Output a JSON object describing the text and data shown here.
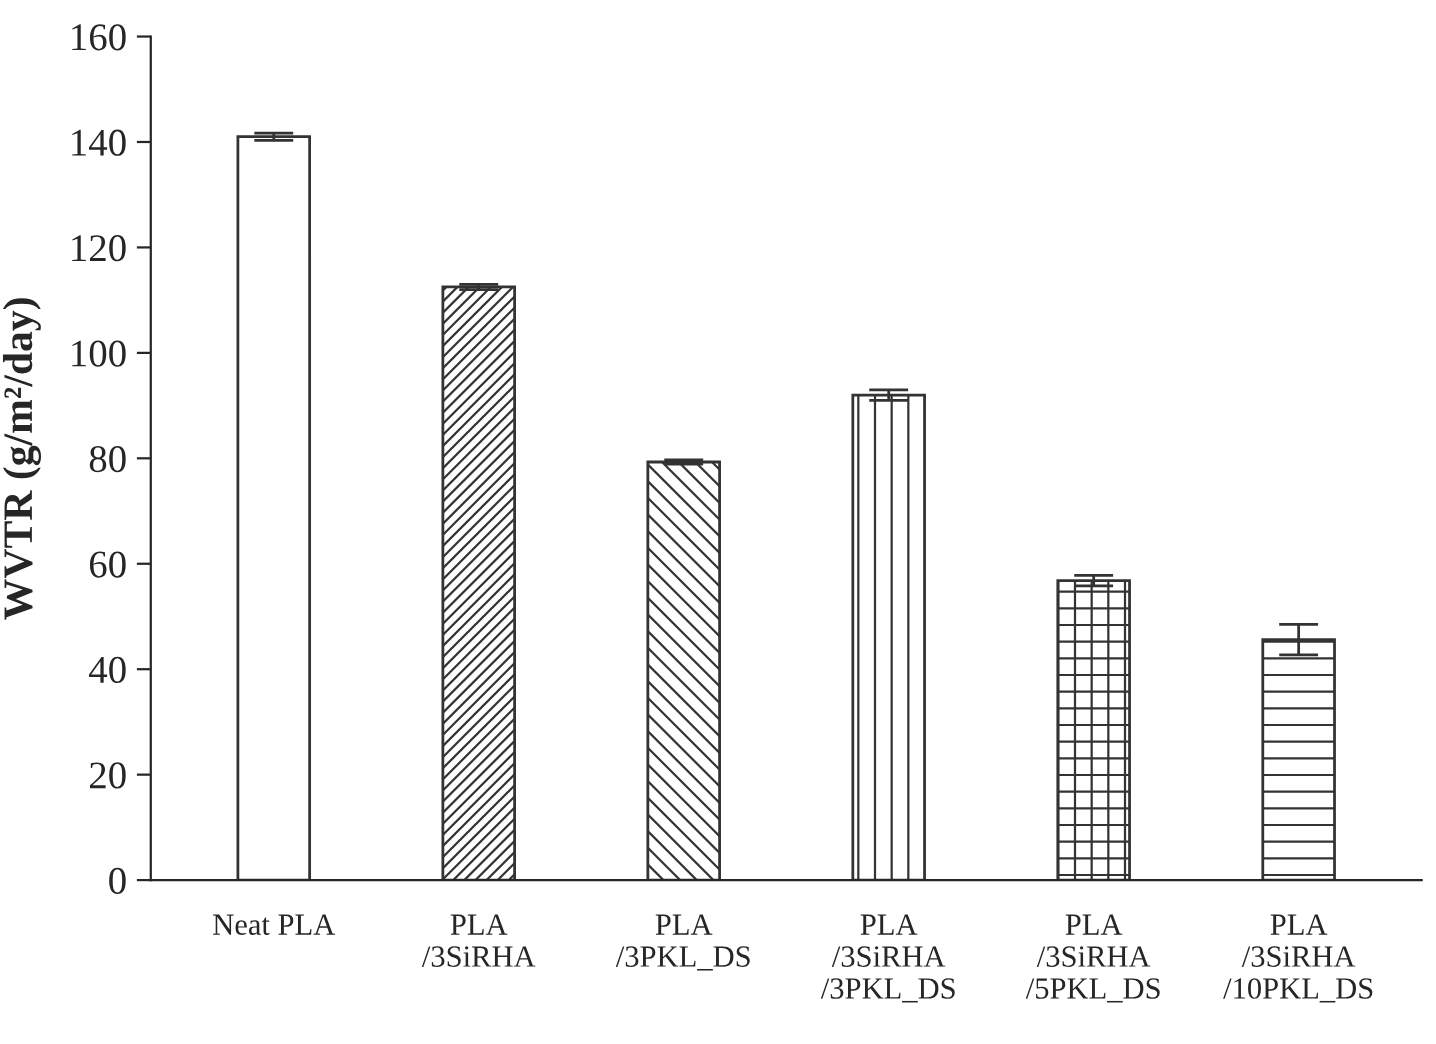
{
  "chart_data": {
    "type": "bar",
    "ylabel": "WVTR (g/m²/day)",
    "categories": [
      "Neat PLA",
      "PLA\n/3SiRHA",
      "PLA\n/3PKL_DS",
      "PLA\n/3SiRHA\n/3PKL_DS",
      "PLA\n/3SiRHA\n/5PKL_DS",
      "PLA\n/3SiRHA\n/10PKL_DS"
    ],
    "values": [
      141,
      112.5,
      79.3,
      92,
      56.8,
      45.6
    ],
    "errors": [
      0.7,
      0.5,
      0.4,
      1.0,
      1.0,
      2.9
    ],
    "ylim": [
      0,
      160
    ],
    "yticks": [
      0,
      20,
      40,
      60,
      80,
      100,
      120,
      140,
      160
    ],
    "grid": false
  }
}
